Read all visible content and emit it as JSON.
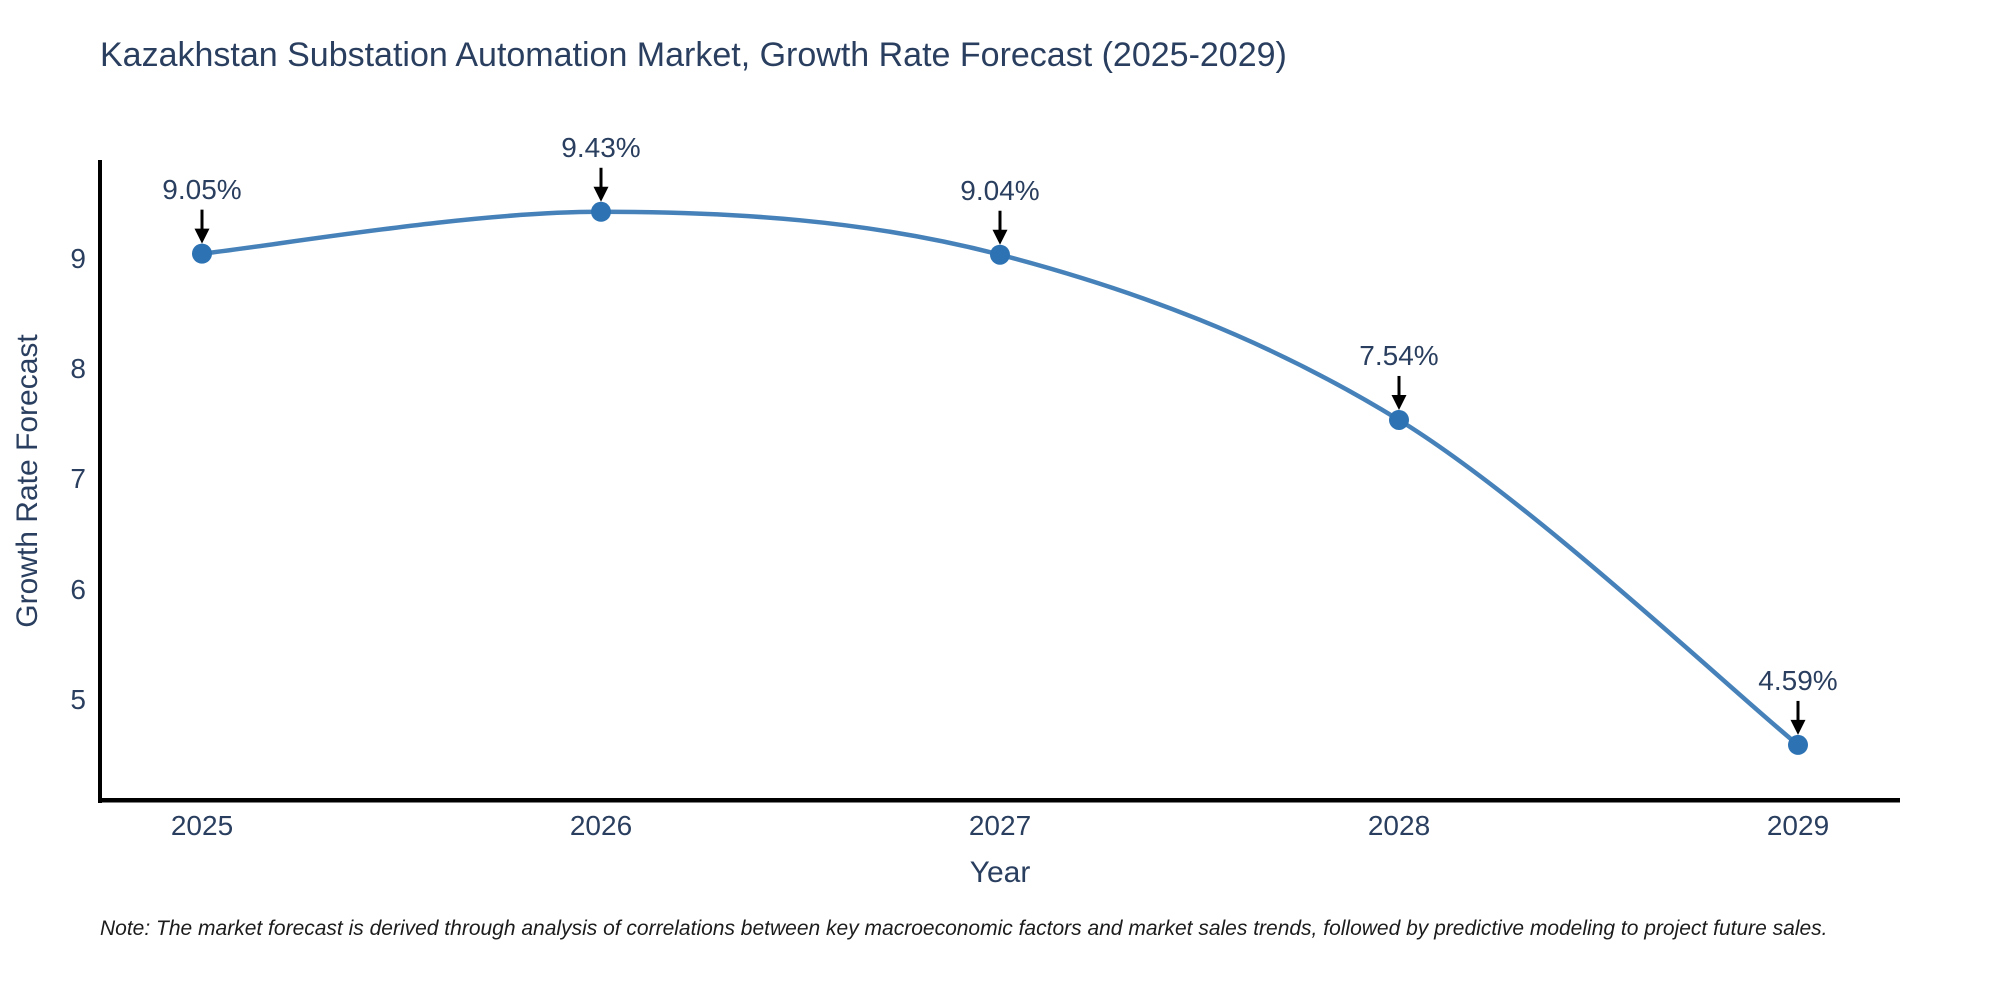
{
  "title": "Kazakhstan Substation Automation Market, Growth Rate Forecast (2025-2029)",
  "note": "Note: The market forecast is derived through analysis of correlations between key macroeconomic factors and market sales trends, followed by predictive modeling to project future sales.",
  "chart_data": {
    "type": "line",
    "title": "Kazakhstan Substation Automation Market, Growth Rate Forecast (2025-2029)",
    "xlabel": "Year",
    "ylabel": "Growth Rate Forecast",
    "categories": [
      "2025",
      "2026",
      "2027",
      "2028",
      "2029"
    ],
    "series": [
      {
        "name": "Growth Rate Forecast",
        "values": [
          9.05,
          9.43,
          9.04,
          7.54,
          4.59
        ]
      }
    ],
    "point_labels": [
      "9.05%",
      "9.43%",
      "9.04%",
      "7.54%",
      "4.59%"
    ],
    "yticks": [
      5,
      6,
      7,
      8,
      9
    ],
    "ylim": [
      4.09,
      9.9
    ],
    "line_shape": "spline",
    "grid": false,
    "legend_position": "none",
    "annotations_style": "value label with black arrow pointing down to marker",
    "colors": {
      "line": "#4682b9",
      "marker": "#2d73b4",
      "axis": "#000000",
      "arrow": "#000000",
      "text": "#2a3f5f",
      "note_text": "#1c1c1c",
      "background": "#ffffff"
    }
  }
}
